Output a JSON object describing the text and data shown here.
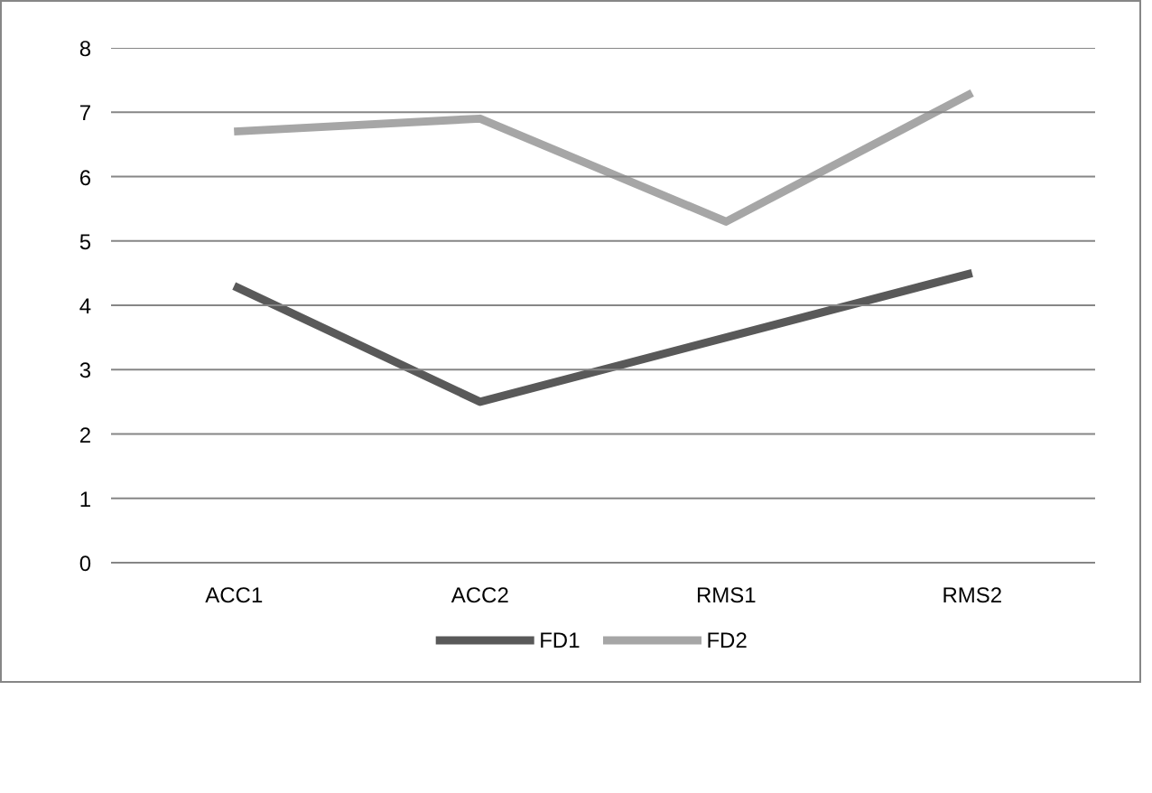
{
  "chart_data": {
    "type": "line",
    "categories": [
      "ACC1",
      "ACC2",
      "RMS1",
      "RMS2"
    ],
    "series": [
      {
        "name": "FD1",
        "color": "#595959",
        "values": [
          4.3,
          2.5,
          3.5,
          4.5
        ]
      },
      {
        "name": "FD2",
        "color": "#a6a6a6",
        "values": [
          6.7,
          6.9,
          5.3,
          7.3
        ]
      }
    ],
    "ylim": [
      0,
      8
    ],
    "yticks": [
      0,
      1,
      2,
      3,
      4,
      5,
      6,
      7,
      8
    ],
    "grid": "y",
    "legend": "bottom",
    "marker": "none",
    "line_style": "solid"
  }
}
